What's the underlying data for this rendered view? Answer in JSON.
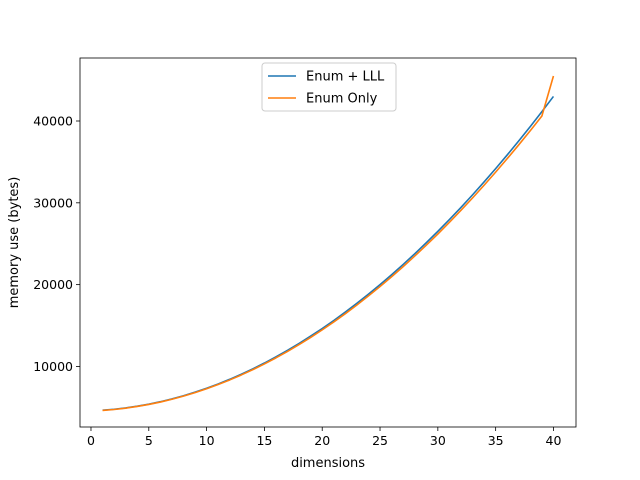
{
  "chart_data": {
    "type": "line",
    "title": "",
    "xlabel": "dimensions",
    "ylabel": "memory use (bytes)",
    "xlim": [
      -0.95,
      41.95
    ],
    "ylim": [
      2600,
      47700
    ],
    "xticks": [
      0,
      5,
      10,
      15,
      20,
      25,
      30,
      35,
      40
    ],
    "yticks": [
      10000,
      20000,
      30000,
      40000
    ],
    "grid": false,
    "legend_position": "upper center",
    "x": [
      1,
      2,
      3,
      4,
      5,
      6,
      7,
      8,
      9,
      10,
      11,
      12,
      13,
      14,
      15,
      16,
      17,
      18,
      19,
      20,
      21,
      22,
      23,
      24,
      25,
      26,
      27,
      28,
      29,
      30,
      31,
      32,
      33,
      34,
      35,
      36,
      37,
      38,
      39,
      40
    ],
    "series": [
      {
        "name": "Enum + LLL",
        "color": "#1f77b4",
        "values": [
          4650,
          4770,
          4930,
          5140,
          5390,
          5690,
          6030,
          6420,
          6860,
          7340,
          7860,
          8430,
          9050,
          9710,
          10420,
          11170,
          11970,
          12820,
          13710,
          14640,
          15620,
          16650,
          17720,
          18840,
          20000,
          21210,
          22470,
          23770,
          25120,
          26510,
          27950,
          29440,
          30970,
          32550,
          34180,
          35850,
          37570,
          39330,
          41150,
          43000
        ]
      },
      {
        "name": "Enum Only",
        "color": "#ff7f0e",
        "values": [
          4620,
          4740,
          4900,
          5110,
          5360,
          5650,
          5990,
          6370,
          6800,
          7270,
          7790,
          8350,
          8960,
          9610,
          10310,
          11050,
          11840,
          12670,
          13550,
          14470,
          15440,
          16450,
          17510,
          18620,
          19770,
          20960,
          22200,
          23490,
          24820,
          26190,
          27610,
          29080,
          30590,
          32150,
          33750,
          35400,
          37090,
          38820,
          40610,
          45500
        ]
      }
    ]
  }
}
